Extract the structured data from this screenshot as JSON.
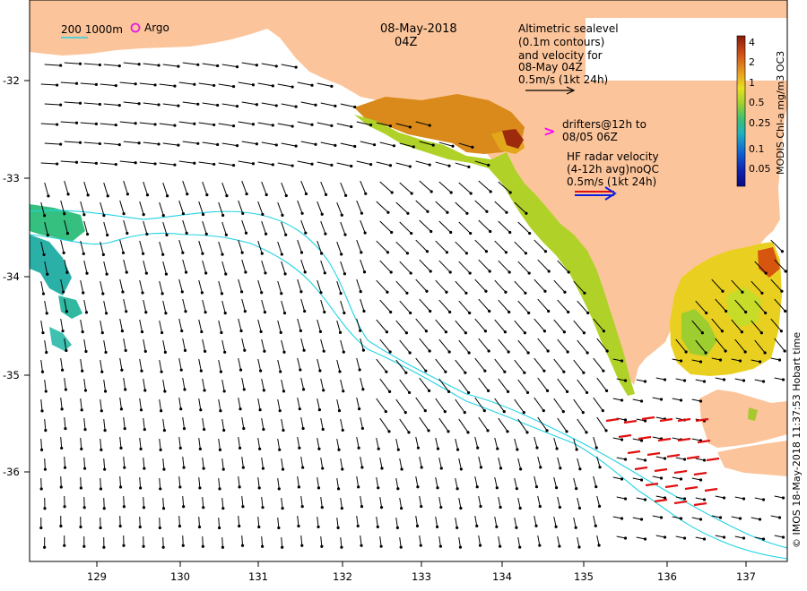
{
  "header": {
    "date_line1": "08-May-2018",
    "date_line2": "04Z"
  },
  "legend": {
    "depth_contours": "200  1000m",
    "argo": "Argo",
    "altimetric": [
      "Altimetric sealevel",
      "(0.1m contours)",
      "and velocity for",
      "08-May 04Z",
      "0.5m/s (1kt 24h)"
    ],
    "drifters_symbol": ">",
    "drifters": [
      "drifters@12h to",
      "08/05 06Z"
    ],
    "hf_radar": [
      "HF radar velocity",
      "(4-12h avg)noQC",
      "0.5m/s (1kt 24h)"
    ]
  },
  "colorbar": {
    "title": "MODIS Chl-a mg/m3 OC3",
    "ticks": [
      "4",
      "2",
      "1",
      "0.5",
      "0.25",
      "0.1",
      "0.05"
    ]
  },
  "credit": "© IMOS 18-May-2018 11:37:53 Hobart time",
  "axes": {
    "x_ticks": [
      "129",
      "130",
      "131",
      "132",
      "133",
      "134",
      "135",
      "136",
      "137"
    ],
    "y_ticks": [
      "-32",
      "-33",
      "-34",
      "-35",
      "-36"
    ]
  },
  "colors": {
    "land": "#fcc49a",
    "contour": "#22d3e3",
    "arrow": "#000000",
    "radar": "#e01010",
    "argo": "#e020e0",
    "drifter": "#ff00ff"
  }
}
